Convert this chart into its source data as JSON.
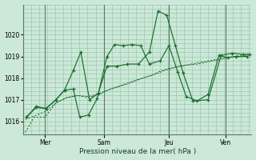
{
  "bg_color": "#cce8d8",
  "grid_color": "#9dc8b0",
  "line_color": "#1a6e2a",
  "title": "Pression niveau de la mer( hPa )",
  "ylabel_ticks": [
    1016,
    1017,
    1018,
    1019,
    1020
  ],
  "xlim": [
    0,
    10.5
  ],
  "ylim": [
    1015.4,
    1021.4
  ],
  "x_ticks": [
    1.0,
    3.7,
    6.7,
    9.3
  ],
  "x_tick_labels": [
    "Mer",
    "Sam",
    "Jeu",
    "Ven"
  ],
  "line1_x": [
    0.1,
    0.5,
    1.0,
    1.5,
    2.0,
    2.5,
    3.0,
    3.5,
    4.0,
    4.7,
    5.5,
    6.0,
    6.5,
    7.0,
    7.5,
    8.0,
    8.5,
    9.0,
    9.5,
    10.0,
    10.4
  ],
  "line1_y": [
    1015.5,
    1016.2,
    1016.2,
    1016.85,
    1017.1,
    1017.2,
    1017.1,
    1017.25,
    1017.5,
    1017.7,
    1018.0,
    1018.15,
    1018.35,
    1018.5,
    1018.6,
    1018.65,
    1018.75,
    1018.85,
    1018.95,
    1019.0,
    1019.05
  ],
  "line2_x": [
    0.1,
    0.5,
    1.0,
    1.5,
    2.0,
    2.5,
    3.0,
    3.5,
    4.2,
    5.0,
    5.8,
    6.5,
    7.2,
    8.0,
    8.8,
    9.4,
    10.0,
    10.4
  ],
  "line2_y": [
    1016.1,
    1016.25,
    1016.45,
    1016.85,
    1017.1,
    1017.2,
    1017.15,
    1017.3,
    1017.55,
    1017.85,
    1018.1,
    1018.4,
    1018.55,
    1018.7,
    1018.85,
    1018.95,
    1019.05,
    1019.1
  ],
  "line3_x": [
    0.15,
    0.6,
    1.05,
    1.5,
    1.9,
    2.3,
    2.6,
    3.0,
    3.4,
    3.85,
    4.2,
    4.6,
    5.0,
    5.4,
    5.8,
    6.3,
    6.7,
    7.1,
    7.5,
    8.0,
    8.5,
    9.0,
    9.4,
    9.8,
    10.3
  ],
  "line3_y": [
    1016.2,
    1016.7,
    1016.6,
    1017.0,
    1017.45,
    1017.5,
    1016.2,
    1016.3,
    1017.05,
    1019.0,
    1019.55,
    1019.5,
    1019.55,
    1019.5,
    1018.65,
    1018.8,
    1019.5,
    1018.3,
    1017.15,
    1016.95,
    1017.25,
    1019.05,
    1018.95,
    1019.0,
    1019.0
  ],
  "line4_x": [
    0.15,
    0.6,
    1.05,
    1.5,
    1.9,
    2.3,
    2.65,
    3.05,
    3.45,
    3.85,
    4.3,
    4.8,
    5.3,
    5.8,
    6.2,
    6.6,
    7.0,
    7.35,
    7.8,
    8.5,
    9.1,
    9.6,
    10.1,
    10.4
  ],
  "line4_y": [
    1016.2,
    1016.65,
    1016.6,
    1017.0,
    1017.45,
    1018.35,
    1019.2,
    1017.0,
    1017.3,
    1018.55,
    1018.55,
    1018.65,
    1018.65,
    1019.2,
    1021.1,
    1020.9,
    1019.5,
    1018.25,
    1016.95,
    1017.0,
    1019.05,
    1019.15,
    1019.1,
    1019.1
  ]
}
